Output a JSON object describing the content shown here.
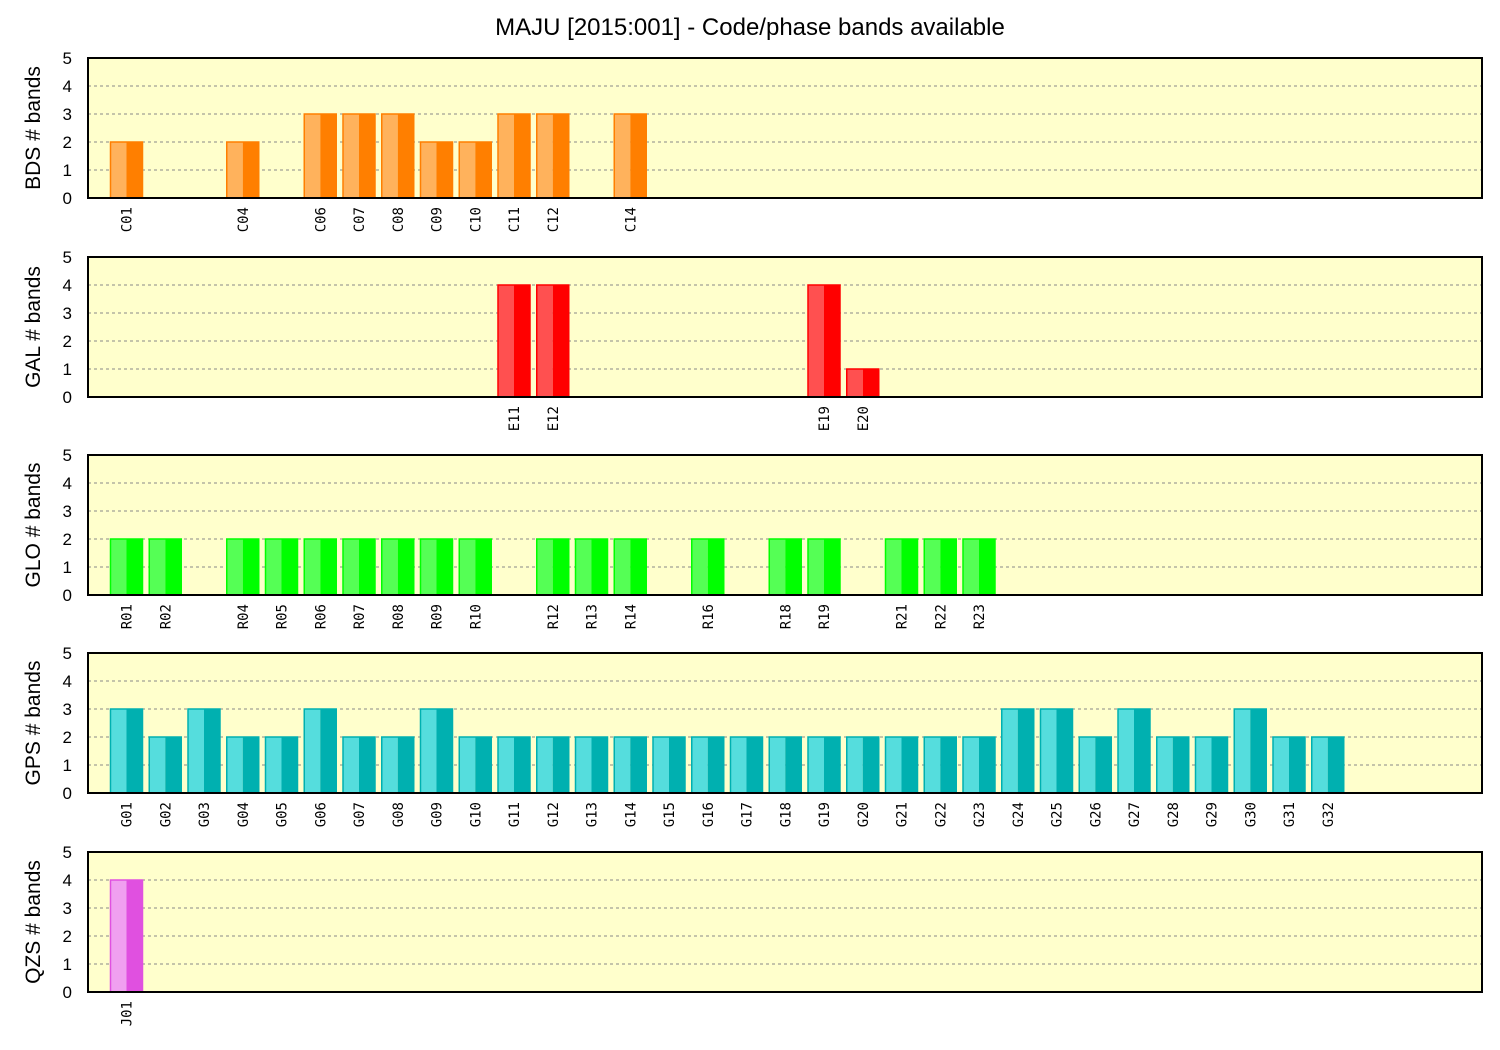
{
  "title": "MAJU [2015:001] - Code/phase bands available",
  "chart_data": [
    {
      "type": "bar",
      "ylabel": "BDS # bands",
      "ylim": [
        0,
        5
      ],
      "yticks": [
        "0",
        "1",
        "2",
        "3",
        "4",
        "5"
      ],
      "grid": true,
      "colors": {
        "left": "#ffb25c",
        "right": "#ff7f00"
      },
      "slots": 40,
      "categories": [
        "C01",
        "C04",
        "C06",
        "C07",
        "C08",
        "C09",
        "C10",
        "C11",
        "C12",
        "C14"
      ],
      "slot_index": [
        0,
        3,
        5,
        6,
        7,
        8,
        9,
        10,
        11,
        13
      ],
      "values": [
        2,
        2,
        3,
        3,
        3,
        2,
        2,
        3,
        3,
        3
      ]
    },
    {
      "type": "bar",
      "ylabel": "GAL # bands",
      "ylim": [
        0,
        5
      ],
      "yticks": [
        "0",
        "1",
        "2",
        "3",
        "4",
        "5"
      ],
      "grid": true,
      "colors": {
        "left": "#ff5050",
        "right": "#ff0000"
      },
      "slots": 40,
      "categories": [
        "E11",
        "E12",
        "E19",
        "E20"
      ],
      "slot_index": [
        10,
        11,
        18,
        19
      ],
      "values": [
        4,
        4,
        4,
        1
      ]
    },
    {
      "type": "bar",
      "ylabel": "GLO # bands",
      "ylim": [
        0,
        5
      ],
      "yticks": [
        "0",
        "1",
        "2",
        "3",
        "4",
        "5"
      ],
      "grid": true,
      "colors": {
        "left": "#55ff55",
        "right": "#00ff00"
      },
      "slots": 40,
      "categories": [
        "R01",
        "R02",
        "R04",
        "R05",
        "R06",
        "R07",
        "R08",
        "R09",
        "R10",
        "R12",
        "R13",
        "R14",
        "R16",
        "R18",
        "R19",
        "R21",
        "R22",
        "R23"
      ],
      "slot_index": [
        0,
        1,
        3,
        4,
        5,
        6,
        7,
        8,
        9,
        11,
        12,
        13,
        15,
        17,
        18,
        20,
        21,
        22
      ],
      "values": [
        2,
        2,
        2,
        2,
        2,
        2,
        2,
        2,
        2,
        2,
        2,
        2,
        2,
        2,
        2,
        2,
        2,
        2
      ]
    },
    {
      "type": "bar",
      "ylabel": "GPS # bands",
      "ylim": [
        0,
        5
      ],
      "yticks": [
        "0",
        "1",
        "2",
        "3",
        "4",
        "5"
      ],
      "grid": true,
      "colors": {
        "left": "#55dddd",
        "right": "#00b0b0"
      },
      "slots": 40,
      "categories": [
        "G01",
        "G02",
        "G03",
        "G04",
        "G05",
        "G06",
        "G07",
        "G08",
        "G09",
        "G10",
        "G11",
        "G12",
        "G13",
        "G14",
        "G15",
        "G16",
        "G17",
        "G18",
        "G19",
        "G20",
        "G21",
        "G22",
        "G23",
        "G24",
        "G25",
        "G26",
        "G27",
        "G28",
        "G29",
        "G30",
        "G31",
        "G32"
      ],
      "slot_index": [
        0,
        1,
        2,
        3,
        4,
        5,
        6,
        7,
        8,
        9,
        10,
        11,
        12,
        13,
        14,
        15,
        16,
        17,
        18,
        19,
        20,
        21,
        22,
        23,
        24,
        25,
        26,
        27,
        28,
        29,
        30,
        31
      ],
      "values": [
        3,
        2,
        3,
        2,
        2,
        3,
        2,
        2,
        3,
        2,
        2,
        2,
        2,
        2,
        2,
        2,
        2,
        2,
        2,
        2,
        2,
        2,
        2,
        3,
        3,
        2,
        3,
        2,
        2,
        3,
        2,
        2
      ]
    },
    {
      "type": "bar",
      "ylabel": "QZS # bands",
      "ylim": [
        0,
        5
      ],
      "yticks": [
        "0",
        "1",
        "2",
        "3",
        "4",
        "5"
      ],
      "grid": true,
      "colors": {
        "left": "#f0a0f0",
        "right": "#e050e0"
      },
      "slots": 40,
      "categories": [
        "J01"
      ],
      "slot_index": [
        0
      ],
      "values": [
        4
      ]
    }
  ]
}
